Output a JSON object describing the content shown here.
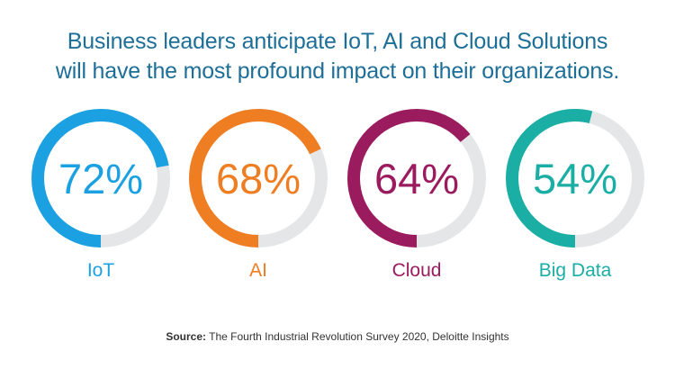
{
  "title": {
    "line1": "Business leaders anticipate IoT, AI and Cloud Solutions",
    "line2": "will have the most profound impact on their organizations."
  },
  "chart_data": {
    "type": "pie",
    "title": "Business leaders anticipate IoT, AI and Cloud Solutions will have the most profound impact on their organizations.",
    "categories": [
      "IoT",
      "AI",
      "Cloud",
      "Big Data"
    ],
    "values": [
      72,
      68,
      64,
      54
    ],
    "value_labels": [
      "72%",
      "68%",
      "64%",
      "54%"
    ],
    "unit": "%",
    "max": 100,
    "colors": [
      "#1ba1e2",
      "#ef7d22",
      "#9b1b5f",
      "#1aaea5"
    ],
    "track_color": "#e4e6e7"
  },
  "source": {
    "prefix": "Source:",
    "text": " The Fourth Industrial Revolution Survey 2020, Deloitte Insights"
  }
}
